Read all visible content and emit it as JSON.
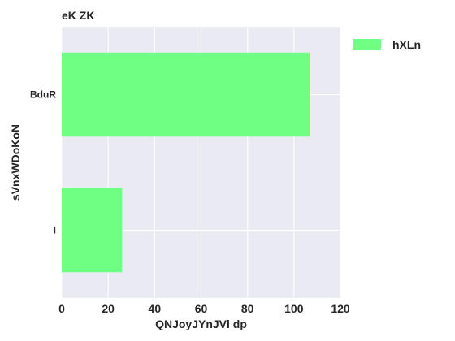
{
  "chart_data": {
    "type": "bar",
    "orientation": "horizontal",
    "title": "eK ZK",
    "xlabel": "QNJoyJYnJVl dp",
    "ylabel": "sVnxWDoKoN",
    "categories": [
      "BduR",
      "I"
    ],
    "series": [
      {
        "name": "hXLn",
        "values": [
          107,
          26
        ]
      }
    ],
    "xlim": [
      0,
      120
    ],
    "xticks": [
      0,
      20,
      40,
      60,
      80,
      100,
      120
    ],
    "grid": true,
    "legend_position": "top-right-outside",
    "colors": {
      "bar": "#6fff83",
      "plot_bg": "#eaeaf2",
      "grid": "#ffffff",
      "text": "#262626"
    }
  }
}
